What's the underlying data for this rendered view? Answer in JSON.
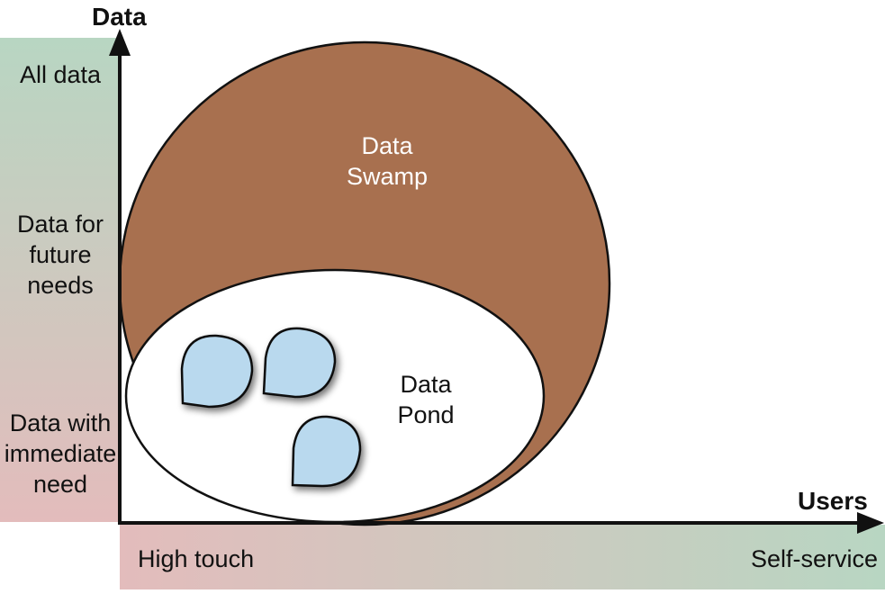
{
  "axes": {
    "y_title": "Data",
    "x_title": "Users"
  },
  "y_levels": {
    "top": "All data",
    "middle": [
      "Data for",
      "future",
      "needs"
    ],
    "bottom": [
      "Data with",
      "immediate",
      "need"
    ]
  },
  "x_levels": {
    "left": "High touch",
    "right": "Self-service"
  },
  "regions": {
    "swamp": [
      "Data",
      "Swamp"
    ],
    "pond": [
      "Data",
      "Pond"
    ]
  },
  "colors": {
    "swamp_fill": "#a8704f",
    "pond_fill": "#ffffff",
    "puddle_fill": "#b9d9ee",
    "outline": "#111111",
    "y_band_top": "#b8d6c2",
    "y_band_bottom": "#e3bcbc",
    "x_band_left": "#e3bcbc",
    "x_band_right": "#b8d6c2"
  },
  "puddles": {
    "count": 3
  }
}
